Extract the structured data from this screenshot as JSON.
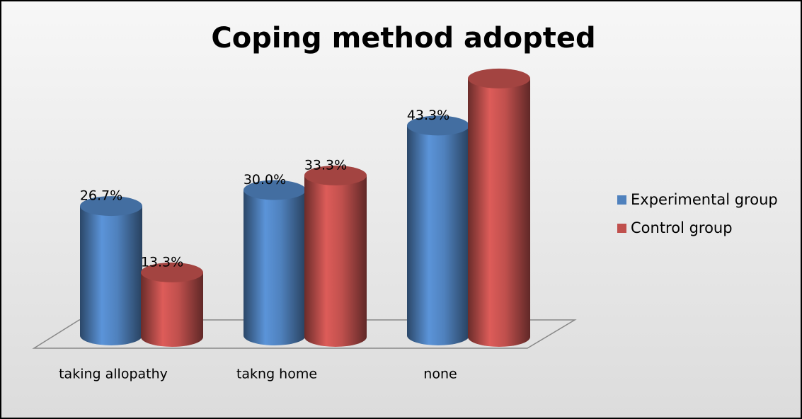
{
  "chart_data": {
    "type": "bar3d",
    "title": "Coping method adopted",
    "categories": [
      "taking allopathy",
      "takng home",
      "none"
    ],
    "series": [
      {
        "name": "Experimental group",
        "color": "#4f81bd",
        "values": [
          26.7,
          30.0,
          43.3
        ],
        "value_labels": [
          "26.7%",
          "30.0%",
          "43.3%"
        ]
      },
      {
        "name": "Control group",
        "color": "#c0504d",
        "values": [
          13.3,
          33.3,
          53.3
        ],
        "value_labels": [
          "13.3%",
          "33.3%",
          null
        ]
      }
    ],
    "ylim": [
      0,
      60
    ],
    "legend": "right"
  }
}
